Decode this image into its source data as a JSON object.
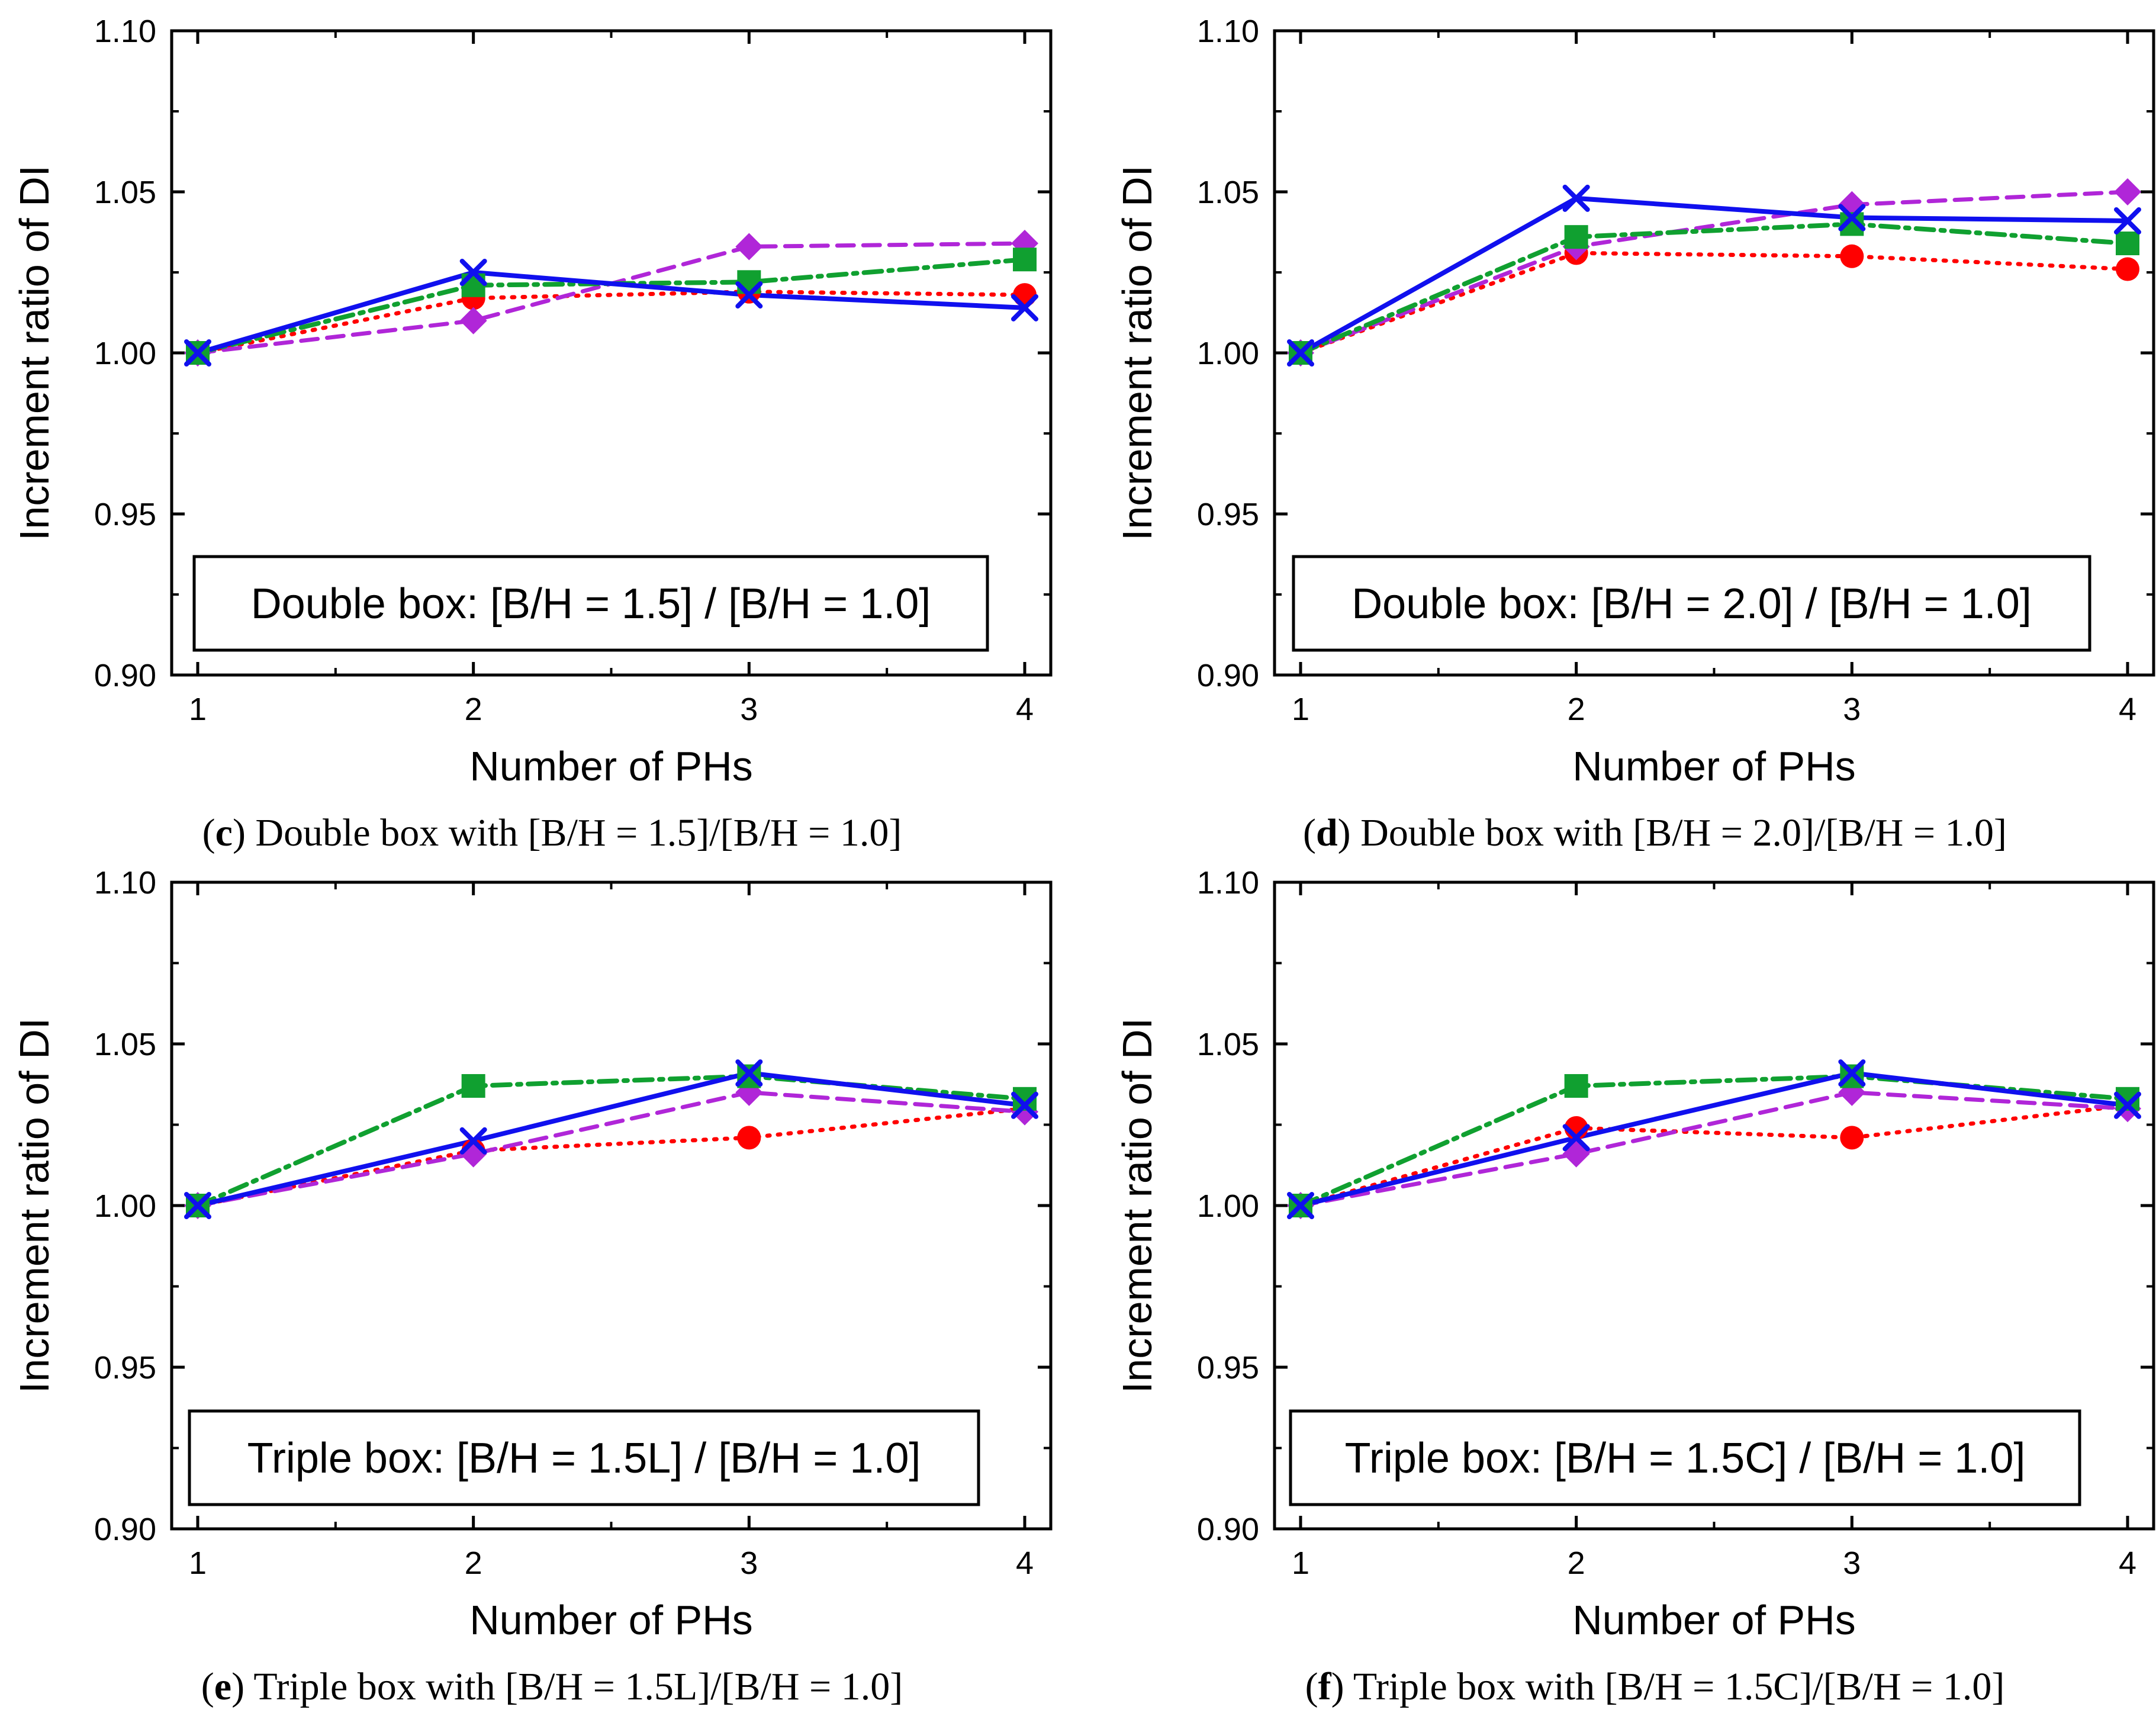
{
  "chart_data": [
    {
      "type": "line",
      "panel": "c",
      "caption": "Double box with [B/H = 1.5]/[B/H = 1.0]",
      "annotation": "Double box: [B/H = 1.5] / [B/H = 1.0]",
      "xlabel": "Number of PHs",
      "ylabel": "Increment ratio of DI",
      "x": [
        1,
        2,
        3,
        4
      ],
      "xticks": [
        "1",
        "2",
        "3",
        "4"
      ],
      "ylim": [
        0.9,
        1.1
      ],
      "yticks": [
        "0.90",
        "0.95",
        "1.00",
        "1.05",
        "1.10"
      ],
      "series": [
        {
          "name": "red-circle-dotted",
          "values": [
            1.0,
            1.017,
            1.019,
            1.018
          ]
        },
        {
          "name": "magenta-diamond-dashed",
          "values": [
            1.0,
            1.01,
            1.033,
            1.034
          ]
        },
        {
          "name": "green-square-dashdot",
          "values": [
            1.0,
            1.021,
            1.022,
            1.029
          ]
        },
        {
          "name": "blue-x-solid",
          "values": [
            1.0,
            1.025,
            1.018,
            1.014
          ]
        }
      ]
    },
    {
      "type": "line",
      "panel": "d",
      "caption": "Double box with [B/H = 2.0]/[B/H = 1.0]",
      "annotation": "Double box: [B/H = 2.0] / [B/H = 1.0]",
      "xlabel": "Number of PHs",
      "ylabel": "Increment ratio of DI",
      "x": [
        1,
        2,
        3,
        4
      ],
      "xticks": [
        "1",
        "2",
        "3",
        "4"
      ],
      "ylim": [
        0.9,
        1.1
      ],
      "yticks": [
        "0.90",
        "0.95",
        "1.00",
        "1.05",
        "1.10"
      ],
      "series": [
        {
          "name": "red-circle-dotted",
          "values": [
            1.0,
            1.031,
            1.03,
            1.026
          ]
        },
        {
          "name": "magenta-diamond-dashed",
          "values": [
            1.0,
            1.033,
            1.046,
            1.05
          ]
        },
        {
          "name": "green-square-dashdot",
          "values": [
            1.0,
            1.036,
            1.04,
            1.034
          ]
        },
        {
          "name": "blue-x-solid",
          "values": [
            1.0,
            1.048,
            1.042,
            1.041
          ]
        }
      ]
    },
    {
      "type": "line",
      "panel": "e",
      "caption": "Triple box with [B/H = 1.5L]/[B/H = 1.0]",
      "annotation": "Triple box: [B/H = 1.5L] / [B/H = 1.0]",
      "xlabel": "Number of PHs",
      "ylabel": "Increment ratio of DI",
      "x": [
        1,
        2,
        3,
        4
      ],
      "xticks": [
        "1",
        "2",
        "3",
        "4"
      ],
      "ylim": [
        0.9,
        1.1
      ],
      "yticks": [
        "0.90",
        "0.95",
        "1.00",
        "1.05",
        "1.10"
      ],
      "series": [
        {
          "name": "red-circle-dotted",
          "values": [
            1.0,
            1.017,
            1.021,
            1.03
          ]
        },
        {
          "name": "magenta-diamond-dashed",
          "values": [
            1.0,
            1.016,
            1.035,
            1.029
          ]
        },
        {
          "name": "green-square-dashdot",
          "values": [
            1.0,
            1.037,
            1.04,
            1.033
          ]
        },
        {
          "name": "blue-x-solid",
          "values": [
            1.0,
            1.02,
            1.041,
            1.031
          ]
        }
      ]
    },
    {
      "type": "line",
      "panel": "f",
      "caption": "Triple box with [B/H = 1.5C]/[B/H = 1.0]",
      "annotation": "Triple box: [B/H = 1.5C] / [B/H = 1.0]",
      "xlabel": "Number of PHs",
      "ylabel": "Increment ratio of DI",
      "x": [
        1,
        2,
        3,
        4
      ],
      "xticks": [
        "1",
        "2",
        "3",
        "4"
      ],
      "ylim": [
        0.9,
        1.1
      ],
      "yticks": [
        "0.90",
        "0.95",
        "1.00",
        "1.05",
        "1.10"
      ],
      "series": [
        {
          "name": "red-circle-dotted",
          "values": [
            1.0,
            1.024,
            1.021,
            1.031
          ]
        },
        {
          "name": "magenta-diamond-dashed",
          "values": [
            1.0,
            1.016,
            1.035,
            1.03
          ]
        },
        {
          "name": "green-square-dashdot",
          "values": [
            1.0,
            1.037,
            1.04,
            1.033
          ]
        },
        {
          "name": "blue-x-solid",
          "values": [
            1.0,
            1.021,
            1.041,
            1.031
          ]
        }
      ]
    }
  ],
  "colors": {
    "red": "#ff0000",
    "magenta": "#b026d8",
    "green": "#10a030",
    "blue": "#1010ee",
    "axis": "#000000"
  }
}
